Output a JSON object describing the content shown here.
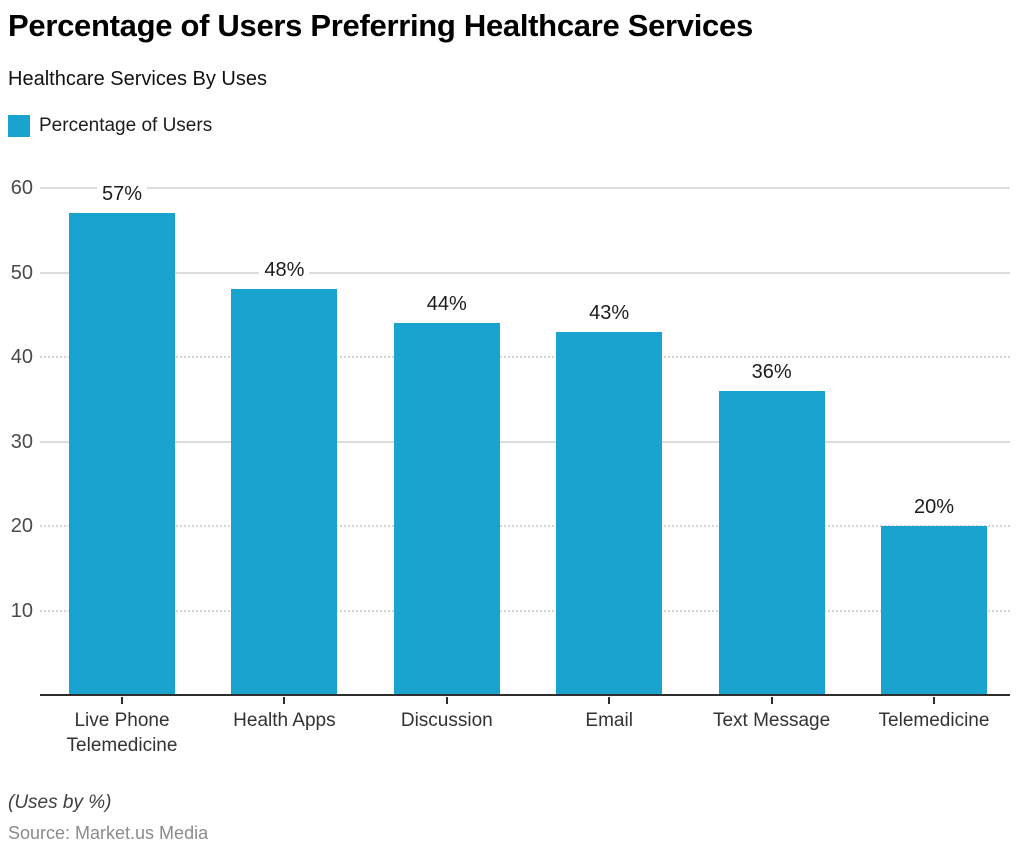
{
  "header": {
    "title": "Percentage of Users Preferring Healthcare Services",
    "subtitle": "Healthcare Services By Uses"
  },
  "legend": {
    "label": "Percentage of Users",
    "color": "#1BA3CF"
  },
  "chart_data": {
    "type": "bar",
    "title": "Percentage of Users Preferring Healthcare Services",
    "subtitle": "Healthcare Services By Uses",
    "categories": [
      "Live Phone Telemedicine",
      "Health Apps",
      "Discussion",
      "Email",
      "Text Message",
      "Telemedicine"
    ],
    "series": [
      {
        "name": "Percentage of Users",
        "values": [
          57,
          48,
          44,
          43,
          36,
          20
        ]
      }
    ],
    "value_labels": [
      "57%",
      "48%",
      "44%",
      "43%",
      "36%",
      "20%"
    ],
    "bar_color": "#1BA3CF",
    "ylim": [
      0,
      60
    ],
    "yticks": [
      {
        "value": 60,
        "label": "60",
        "grid": "solid"
      },
      {
        "value": 50,
        "label": "50",
        "grid": "solid"
      },
      {
        "value": 40,
        "label": "40",
        "grid": "dotted"
      },
      {
        "value": 30,
        "label": "30",
        "grid": "solid"
      },
      {
        "value": 20,
        "label": "20",
        "grid": "dotted"
      },
      {
        "value": 10,
        "label": "10",
        "grid": "dotted"
      }
    ],
    "grid": true,
    "legend_position": "top-left",
    "xlabel": "",
    "ylabel": ""
  },
  "footer": {
    "note": "(Uses by %)",
    "source": "Source: Market.us Media"
  }
}
